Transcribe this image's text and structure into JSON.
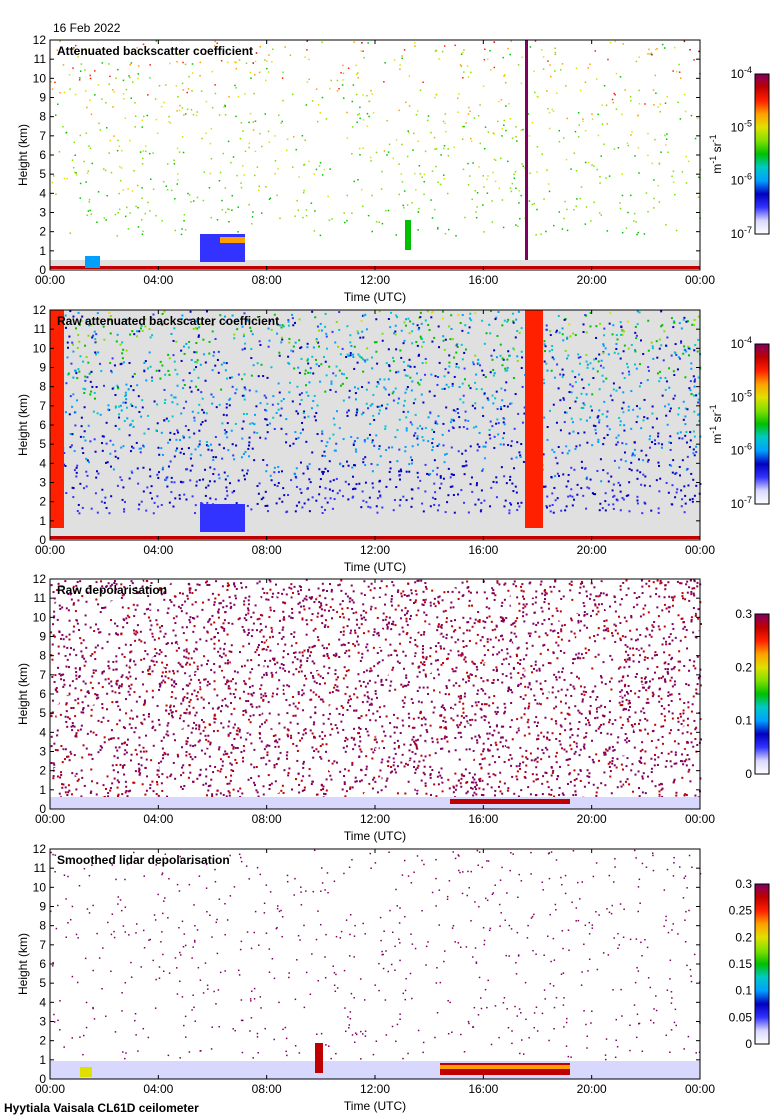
{
  "header": {
    "date": "16 Feb 2022"
  },
  "footer": {
    "site": "Hyytiala Vaisala CL61D ceilometer"
  },
  "palette": [
    "#ffffff",
    "#d8d8ff",
    "#3333ff",
    "#0000c0",
    "#00a0ff",
    "#00c8c8",
    "#00c000",
    "#80e000",
    "#e0e000",
    "#ffa000",
    "#ff2000",
    "#c00000",
    "#800060"
  ],
  "chart_data": [
    {
      "type": "heatmap",
      "title": "Attenuated backscatter coefficient",
      "xlabel": "Time (UTC)",
      "ylabel": "Height (km)",
      "x_ticks": [
        "00:00",
        "04:00",
        "08:00",
        "12:00",
        "16:00",
        "20:00",
        "00:00"
      ],
      "y_ticks": [
        "0",
        "1",
        "2",
        "3",
        "4",
        "5",
        "6",
        "7",
        "8",
        "9",
        "10",
        "11",
        "12"
      ],
      "ylim": [
        0,
        12
      ],
      "colorbar": {
        "scale": "log",
        "ticks": [
          {
            "base": "10",
            "exp": "-7"
          },
          {
            "base": "10",
            "exp": "-6"
          },
          {
            "base": "10",
            "exp": "-5"
          },
          {
            "base": "10",
            "exp": "-4"
          }
        ],
        "unit_base": [
          "m",
          "sr"
        ],
        "unit_exp": [
          "-1",
          "-1"
        ]
      }
    },
    {
      "type": "heatmap",
      "title": "Raw attenuated backscatter coefficient",
      "xlabel": "Time (UTC)",
      "ylabel": "Height (km)",
      "x_ticks": [
        "00:00",
        "04:00",
        "08:00",
        "12:00",
        "16:00",
        "20:00",
        "00:00"
      ],
      "y_ticks": [
        "0",
        "1",
        "2",
        "3",
        "4",
        "5",
        "6",
        "7",
        "8",
        "9",
        "10",
        "11",
        "12"
      ],
      "ylim": [
        0,
        12
      ],
      "colorbar": {
        "scale": "log",
        "ticks": [
          {
            "base": "10",
            "exp": "-7"
          },
          {
            "base": "10",
            "exp": "-6"
          },
          {
            "base": "10",
            "exp": "-5"
          },
          {
            "base": "10",
            "exp": "-4"
          }
        ],
        "unit_base": [
          "m",
          "sr"
        ],
        "unit_exp": [
          "-1",
          "-1"
        ]
      }
    },
    {
      "type": "heatmap",
      "title": "Raw depolarisation",
      "xlabel": "Time (UTC)",
      "ylabel": "Height (km)",
      "x_ticks": [
        "00:00",
        "04:00",
        "08:00",
        "12:00",
        "16:00",
        "20:00",
        "00:00"
      ],
      "y_ticks": [
        "0",
        "1",
        "2",
        "3",
        "4",
        "5",
        "6",
        "7",
        "8",
        "9",
        "10",
        "11",
        "12"
      ],
      "ylim": [
        0,
        12
      ],
      "colorbar": {
        "scale": "linear",
        "ticks": [
          "0",
          "0.1",
          "0.2",
          "0.3"
        ]
      }
    },
    {
      "type": "heatmap",
      "title": "Smoothed lidar depolarisation",
      "xlabel": "Time (UTC)",
      "ylabel": "Height (km)",
      "x_ticks": [
        "00:00",
        "04:00",
        "08:00",
        "12:00",
        "16:00",
        "20:00",
        "00:00"
      ],
      "y_ticks": [
        "0",
        "1",
        "2",
        "3",
        "4",
        "5",
        "6",
        "7",
        "8",
        "9",
        "10",
        "11",
        "12"
      ],
      "ylim": [
        0,
        12
      ],
      "colorbar": {
        "scale": "linear",
        "ticks": [
          "0",
          "0.05",
          "0.1",
          "0.15",
          "0.2",
          "0.25",
          "0.3"
        ]
      }
    }
  ]
}
